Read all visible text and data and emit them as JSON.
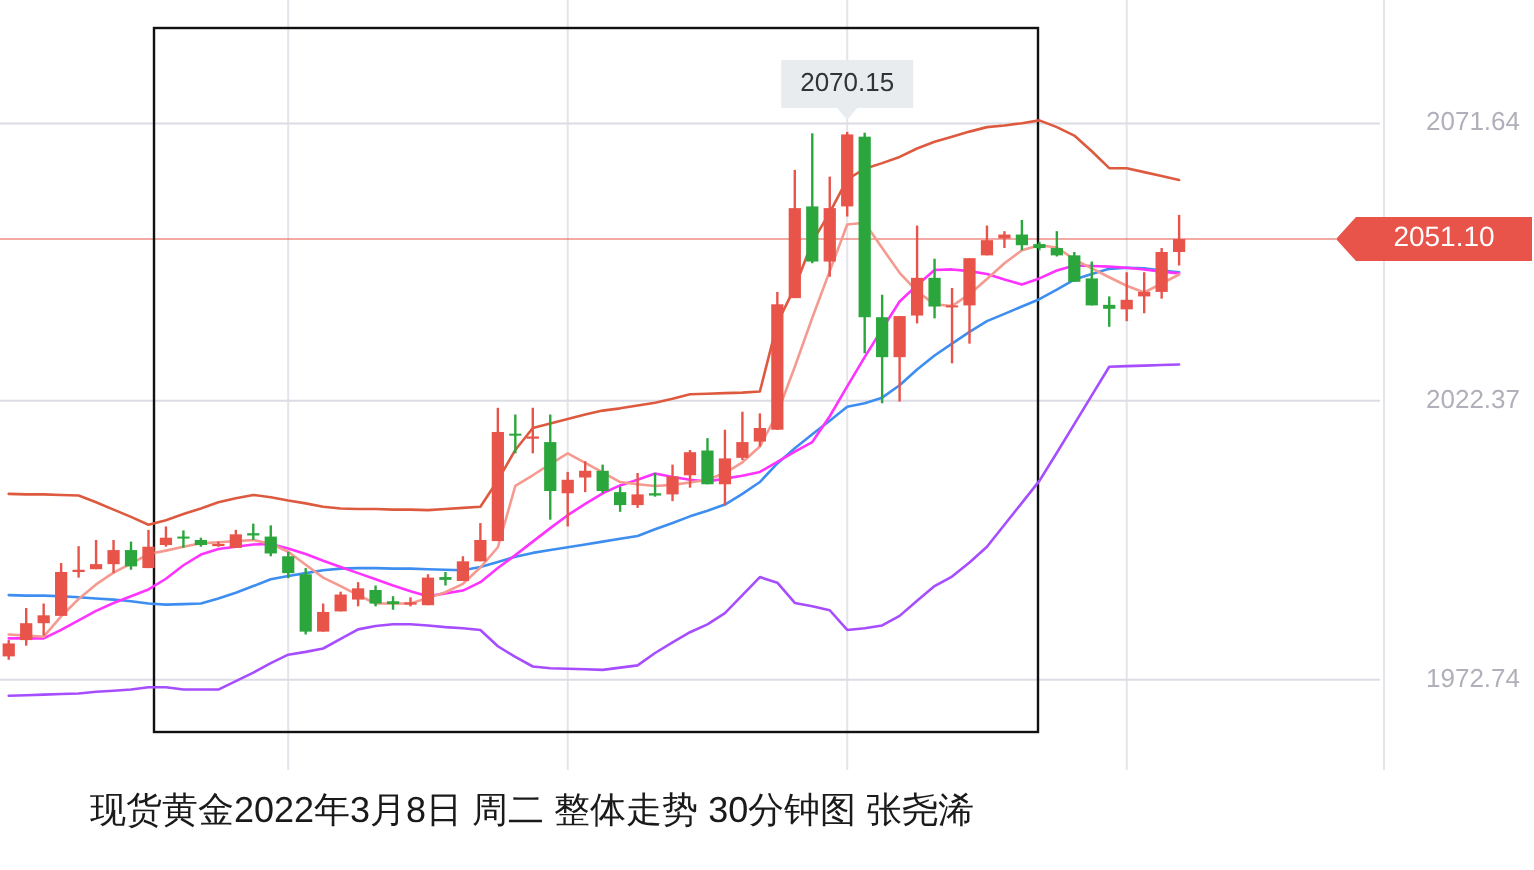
{
  "chart_data": {
    "type": "candlestick",
    "title": "现货黄金2022年3月8日 周二  整体走势 30分钟图  张尧浠",
    "categories": [
      null,
      null,
      null,
      null,
      null,
      null,
      null,
      null,
      null,
      null,
      null,
      null,
      null,
      null,
      null,
      null,
      null,
      null,
      null,
      null,
      null,
      null,
      null,
      null,
      null,
      null,
      null,
      null,
      null,
      null,
      null,
      null,
      null,
      null,
      null,
      null,
      null,
      null,
      null,
      null,
      null,
      null,
      null,
      null,
      null,
      null,
      null,
      null,
      null,
      null,
      null,
      null,
      null,
      null,
      null,
      null,
      null,
      null,
      null,
      null,
      null,
      null,
      null,
      null,
      null,
      null,
      null,
      null,
      null,
      null,
      null,
      null,
      null,
      null,
      null,
      null,
      null,
      null,
      null
    ],
    "ohlc": [
      [
        1976.9,
        1979.8,
        1976.3,
        1979.2
      ],
      [
        1979.8,
        1985.5,
        1978.8,
        1982.8
      ],
      [
        1982.8,
        1986.3,
        1980.6,
        1984.2
      ],
      [
        1984.1,
        1993.5,
        1984.1,
        1991.9
      ],
      [
        1991.9,
        1996.5,
        1990.9,
        1992.3
      ],
      [
        1992.4,
        1997.6,
        1992.4,
        1993.3
      ],
      [
        1993.3,
        1997.6,
        1991.7,
        1995.8
      ],
      [
        1995.8,
        1997.3,
        1992.3,
        1992.9
      ],
      [
        1992.6,
        1999.4,
        1992.6,
        1996.4
      ],
      [
        1996.7,
        2000.0,
        1996.4,
        1998.0
      ],
      [
        1998.2,
        1999.3,
        1996.2,
        1997.9
      ],
      [
        1997.6,
        1998.0,
        1996.4,
        1996.7
      ],
      [
        1996.5,
        1997.3,
        1996.4,
        1996.9
      ],
      [
        1996.2,
        1999.4,
        1996.2,
        1998.6
      ],
      [
        1998.8,
        2000.5,
        1997.6,
        1998.4
      ],
      [
        1998.2,
        2000.2,
        1994.7,
        1995.2
      ],
      [
        1994.7,
        1995.5,
        1990.8,
        1991.7
      ],
      [
        1991.5,
        1992.6,
        1980.8,
        1981.3
      ],
      [
        1981.3,
        1986.3,
        1981.3,
        1984.8
      ],
      [
        1984.9,
        1988.4,
        1984.9,
        1987.9
      ],
      [
        1987.0,
        1990.1,
        1985.8,
        1989.0
      ],
      [
        1988.7,
        1989.5,
        1985.8,
        1986.3
      ],
      [
        1986.7,
        1987.6,
        1985.2,
        1986.2
      ],
      [
        1986.1,
        1987.4,
        1985.8,
        1986.5
      ],
      [
        1986.0,
        1991.5,
        1986.0,
        1990.9
      ],
      [
        1991.0,
        1991.9,
        1989.5,
        1990.5
      ],
      [
        1990.3,
        1994.7,
        1990.3,
        1993.8
      ],
      [
        1993.8,
        2000.6,
        1993.8,
        1997.6
      ],
      [
        1997.4,
        2021.1,
        1997.4,
        2016.8
      ],
      [
        2016.5,
        2019.9,
        2013.0,
        2016.2
      ],
      [
        2015.6,
        2021.1,
        2013.0,
        2016.0
      ],
      [
        2015.0,
        2019.9,
        2001.2,
        2006.3
      ],
      [
        2005.9,
        2009.7,
        2000.0,
        2008.3
      ],
      [
        2008.7,
        2011.6,
        2006.1,
        2009.9
      ],
      [
        2009.9,
        2011.0,
        2005.9,
        2006.3
      ],
      [
        2006.1,
        2007.1,
        2002.6,
        2003.8
      ],
      [
        2003.8,
        2009.5,
        2003.3,
        2005.7
      ],
      [
        2005.9,
        2009.5,
        2005.3,
        2005.5
      ],
      [
        2005.7,
        2011.0,
        2004.5,
        2008.9
      ],
      [
        2009.1,
        2013.6,
        2006.9,
        2013.2
      ],
      [
        2013.5,
        2015.7,
        2007.5,
        2007.5
      ],
      [
        2007.5,
        2017.2,
        2003.8,
        2012.1
      ],
      [
        2012.2,
        2020.4,
        2011.8,
        2015.0
      ],
      [
        2015.1,
        2020.1,
        2014.2,
        2017.5
      ],
      [
        2017.2,
        2041.7,
        2017.2,
        2039.5
      ],
      [
        2040.6,
        2063.4,
        2040.6,
        2056.6
      ],
      [
        2056.9,
        2069.9,
        2046.8,
        2047.1
      ],
      [
        2047.1,
        2062.2,
        2044.4,
        2056.6
      ],
      [
        2056.9,
        2070.15,
        2055.1,
        2069.7
      ],
      [
        2069.3,
        2070.0,
        2030.8,
        2037.2
      ],
      [
        2037.2,
        2041.2,
        2021.9,
        2030.1
      ],
      [
        2030.1,
        2037.4,
        2022.2,
        2037.4
      ],
      [
        2037.5,
        2053.5,
        2036.1,
        2044.2
      ],
      [
        2044.2,
        2047.6,
        2037.0,
        2039.1
      ],
      [
        2039.0,
        2042.4,
        2029.0,
        2039.3
      ],
      [
        2039.3,
        2047.7,
        2032.5,
        2047.7
      ],
      [
        2048.2,
        2053.5,
        2048.2,
        2050.9
      ],
      [
        2051.2,
        2052.5,
        2049.5,
        2051.9
      ],
      [
        2051.9,
        2054.5,
        2049.1,
        2050.0
      ],
      [
        2050.2,
        2050.6,
        2049.1,
        2049.5
      ],
      [
        2049.5,
        2052.5,
        2048.0,
        2048.2
      ],
      [
        2048.2,
        2048.8,
        2043.5,
        2043.5
      ],
      [
        2044.1,
        2047.1,
        2039.3,
        2039.3
      ],
      [
        2039.4,
        2040.9,
        2035.5,
        2038.7
      ],
      [
        2038.6,
        2045.2,
        2036.5,
        2040.3
      ],
      [
        2040.9,
        2045.2,
        2037.9,
        2041.7
      ],
      [
        2041.7,
        2049.5,
        2040.5,
        2048.8
      ],
      [
        2048.8,
        2055.4,
        2046.4,
        2051.1
      ],
      null,
      null,
      null,
      null,
      null,
      null,
      null,
      null,
      null,
      null,
      null
    ],
    "colors": [
      "#e8534a",
      "#e8534a",
      "#e8534a",
      "#e8534a",
      "#e8534a",
      "#e8534a",
      "#e8534a",
      "#2aa63c",
      "#e8534a",
      "#e8534a",
      "#2aa63c",
      "#2aa63c",
      "#e8534a",
      "#e8534a",
      "#2aa63c",
      "#2aa63c",
      "#2aa63c",
      "#2aa63c",
      "#e8534a",
      "#e8534a",
      "#e8534a",
      "#2aa63c",
      "#2aa63c",
      "#e8534a",
      "#e8534a",
      "#2aa63c",
      "#e8534a",
      "#e8534a",
      "#e8534a",
      "#2aa63c",
      "#e8534a",
      "#2aa63c",
      "#e8534a",
      "#e8534a",
      "#2aa63c",
      "#2aa63c",
      "#e8534a",
      "#2aa63c",
      "#e8534a",
      "#e8534a",
      "#2aa63c",
      "#e8534a",
      "#e8534a",
      "#e8534a",
      "#e8534a",
      "#e8534a",
      "#2aa63c",
      "#e8534a",
      "#e8534a",
      "#2aa63c",
      "#2aa63c",
      "#e8534a",
      "#e8534a",
      "#2aa63c",
      "#e8534a",
      "#e8534a",
      "#e8534a",
      "#e8534a",
      "#2aa63c",
      "#2aa63c",
      "#2aa63c",
      "#2aa63c",
      "#2aa63c",
      "#2aa63c",
      "#e8534a",
      "#e8534a",
      "#e8534a",
      "#e8534a",
      null,
      null,
      null,
      null,
      null,
      null,
      null,
      null,
      null,
      null,
      null
    ],
    "series": [
      {
        "type": "line",
        "color": "#dd5a3f",
        "values": [
          2005.8,
          2005.7,
          2005.7,
          2005.6,
          2005.5,
          2004.3,
          2003.0,
          2001.7,
          2000.3,
          2001.1,
          2002.2,
          2003.2,
          2004.3,
          2005.0,
          2005.6,
          2005.2,
          2004.6,
          2004.1,
          2003.5,
          2003.2,
          2003.1,
          2003.1,
          2003.0,
          2003.0,
          2002.9,
          2003.1,
          2003.3,
          2003.5,
          2008.2,
          2013.6,
          2017.5,
          2018.3,
          2019.1,
          2019.9,
          2020.6,
          2021.0,
          2021.5,
          2022.0,
          2022.7,
          2023.5,
          2023.6,
          2023.7,
          2023.8,
          2024.0,
          2036.2,
          2042.5,
          2050.6,
          2055.8,
          2061.7,
          2063.6,
          2064.6,
          2065.7,
          2067.2,
          2068.4,
          2069.3,
          2070.2,
          2071.0,
          2071.3,
          2071.7,
          2072.2,
          2071.0,
          2069.5,
          2066.7,
          2063.7,
          2063.7,
          2063.0,
          2062.3,
          2061.6,
          null,
          null,
          null,
          null,
          null,
          null,
          null,
          null,
          null,
          null,
          null
        ]
      },
      {
        "type": "line",
        "color": "#a64dff",
        "values": [
          1969.9,
          1970.0,
          1970.1,
          1970.2,
          1970.3,
          1970.6,
          1970.8,
          1971.0,
          1971.4,
          1971.4,
          1971.0,
          1971.0,
          1971.0,
          1972.5,
          1974.0,
          1975.7,
          1977.2,
          1977.7,
          1978.3,
          1980.0,
          1981.7,
          1982.3,
          1982.6,
          1982.6,
          1982.4,
          1982.1,
          1981.9,
          1981.6,
          1978.7,
          1976.8,
          1975.1,
          1974.8,
          1974.7,
          1974.6,
          1974.5,
          1974.9,
          1975.3,
          1977.5,
          1979.4,
          1981.2,
          1982.6,
          1984.6,
          1987.8,
          1991.0,
          1990.0,
          1986.4,
          1985.8,
          1985.1,
          1981.6,
          1981.9,
          1982.4,
          1984.1,
          1986.8,
          1989.4,
          1991.1,
          1993.6,
          1996.4,
          2000.3,
          2004.2,
          2008.1,
          2013.1,
          2018.2,
          2023.3,
          2028.4,
          2028.5,
          2028.6,
          2028.7,
          2028.8,
          null,
          null,
          null,
          null,
          null,
          null,
          null,
          null,
          null,
          null,
          null
        ]
      },
      {
        "type": "line",
        "color": "#3d8ef0",
        "values": [
          1987.8,
          1987.7,
          1987.7,
          1987.6,
          1987.4,
          1987.2,
          1987.0,
          1986.7,
          1986.3,
          1986.1,
          1986.2,
          1986.3,
          1987.2,
          1988.2,
          1989.4,
          1990.6,
          1991.2,
          1991.7,
          1992.2,
          1992.5,
          1992.6,
          1992.6,
          1992.5,
          1992.5,
          1992.4,
          1992.3,
          1992.2,
          1992.8,
          1993.7,
          1994.6,
          1995.3,
          1995.8,
          1996.3,
          1996.8,
          1997.3,
          1997.8,
          1998.3,
          1999.5,
          2000.6,
          2001.8,
          2002.8,
          2003.9,
          2005.8,
          2007.9,
          2011.2,
          2013.9,
          2016.4,
          2018.8,
          2021.3,
          2021.9,
          2022.9,
          2025.1,
          2027.9,
          2030.4,
          2032.5,
          2034.6,
          2036.5,
          2037.8,
          2039.1,
          2040.4,
          2042.1,
          2043.9,
          2044.9,
          2045.8,
          2046.0,
          2045.9,
          2045.5,
          2045.2,
          null,
          null,
          null,
          null,
          null,
          null,
          null,
          null,
          null,
          null,
          null
        ]
      },
      {
        "type": "line",
        "color": "#ff33ff",
        "values": [
          1980.1,
          1980.1,
          1980.1,
          1981.6,
          1983.3,
          1985.0,
          1986.4,
          1987.6,
          1988.8,
          1990.7,
          1993.1,
          1995.0,
          1996.0,
          1996.4,
          1996.8,
          1996.9,
          1996.1,
          1995.1,
          1993.9,
          1992.8,
          1991.7,
          1990.6,
          1989.5,
          1988.5,
          1987.6,
          1988.1,
          1988.6,
          1990.1,
          1992.6,
          1994.9,
          1997.3,
          1999.7,
          2002.0,
          2004.0,
          2005.9,
          2007.3,
          2008.3,
          2009.4,
          2008.8,
          2008.3,
          2008.0,
          2008.5,
          2009.0,
          2009.7,
          2011.5,
          2013.3,
          2015.0,
          2019.6,
          2024.9,
          2030.1,
          2035.1,
          2040.0,
          2042.9,
          2045.6,
          2045.7,
          2045.4,
          2044.9,
          2043.9,
          2043.0,
          2044.1,
          2045.5,
          2046.4,
          2046.3,
          2046.2,
          2046.0,
          2045.7,
          2045.3,
          2045.0,
          null,
          null,
          null,
          null,
          null,
          null,
          null,
          null,
          null,
          null,
          null
        ]
      },
      {
        "type": "line",
        "color": "#f59a90",
        "values": [
          1980.8,
          1980.6,
          1980.4,
          1984.0,
          1987.1,
          1989.7,
          1991.8,
          1993.4,
          1995.1,
          1995.7,
          1996.4,
          1997.0,
          1997.2,
          1997.4,
          1997.6,
          1996.9,
          1995.5,
          1993.2,
          1990.9,
          1989.4,
          1987.8,
          1986.3,
          1986.3,
          1986.3,
          1987.3,
          1988.3,
          1989.8,
          1992.7,
          1996.3,
          2007.2,
          2009.1,
          2011.1,
          2013.0,
          2011.3,
          2009.6,
          2007.9,
          2007.5,
          2007.2,
          2007.4,
          2007.8,
          2008.3,
          2009.5,
          2011.4,
          2014.2,
          2020.1,
          2028.4,
          2037.1,
          2045.4,
          2053.7,
          2054.0,
          2049.5,
          2045.1,
          2041.8,
          2039.5,
          2039.2,
          2041.3,
          2044.0,
          2046.8,
          2049.1,
          2050.0,
          2049.6,
          2047.5,
          2045.9,
          2044.3,
          2042.8,
          2041.6,
          2043.2,
          2044.8,
          null,
          null,
          null,
          null,
          null,
          null,
          null,
          null,
          null,
          null,
          null
        ]
      }
    ],
    "ylim": [
      1956.7,
      2093.6
    ],
    "yticks": [
      2071.64,
      2022.37,
      1972.74
    ],
    "grid": true,
    "tick_labels": "y",
    "ref_lines": [
      {
        "axis": "y",
        "value": 2051.1,
        "label": "2051.10",
        "color": "#e8534a"
      }
    ],
    "annotations": [
      "2070.15"
    ]
  }
}
